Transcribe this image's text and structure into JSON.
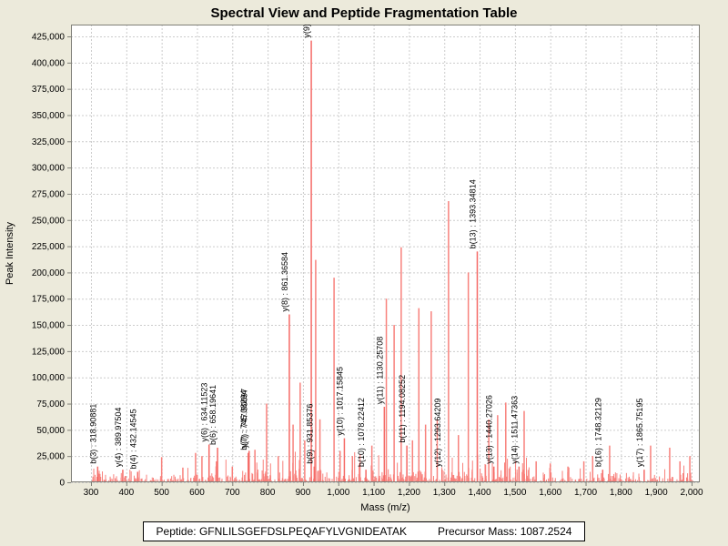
{
  "window": {
    "background": "#ECEADB",
    "plot_background": "#FFFFFF"
  },
  "title": "Spectral View and Peptide Fragmentation Table",
  "footer": {
    "peptide_label": "Peptide:",
    "peptide_sequence": "GFNLILSGEFDSLPEQAFYLVGNIDEATAK",
    "precursor_label": "Precursor Mass:",
    "precursor_mass": "1087.2524"
  },
  "chart_data": {
    "type": "bar",
    "title": "Spectral View and Peptide Fragmentation Table",
    "xlabel": "Mass (m/z)",
    "ylabel": "Peak Intensity",
    "xlim": [
      243,
      2023
    ],
    "ylim": [
      0,
      436000
    ],
    "x_ticks": [
      300,
      400,
      500,
      600,
      700,
      800,
      900,
      1000,
      1100,
      1200,
      1300,
      1400,
      1500,
      1600,
      1700,
      1800,
      1900,
      2000
    ],
    "y_ticks": [
      0,
      25000,
      50000,
      75000,
      100000,
      125000,
      150000,
      175000,
      200000,
      225000,
      250000,
      275000,
      300000,
      325000,
      350000,
      375000,
      400000,
      425000
    ],
    "grid": "dashed",
    "grid_color": "#CCCCCC",
    "axis_color": "#7F7F78",
    "bar_color": "#F8817C",
    "bar_color_strong": "#F56A66",
    "legend": "none",
    "annotated_peaks": [
      {
        "label": "b(3) : 318.90881",
        "mz": 318.90881,
        "intensity": 15000
      },
      {
        "label": "y(4) : 389.97504",
        "mz": 389.97504,
        "intensity": 12000
      },
      {
        "label": "b(4) : 432.14545",
        "mz": 432.14545,
        "intensity": 10000
      },
      {
        "label": "y(6) : 634.11523",
        "mz": 634.11523,
        "intensity": 36000
      },
      {
        "label": "b(6) : 658.19641",
        "mz": 658.19641,
        "intensity": 33000
      },
      {
        "label": "b(7) : 745.08294",
        "mz": 745.08294,
        "intensity": 28000
      },
      {
        "label": "y(7) : 747.50697",
        "mz": 747.50697,
        "intensity": 30000
      },
      {
        "label": "y(8) : 861.36584",
        "mz": 861.36584,
        "intensity": 160000
      },
      {
        "label": "y(9) : ",
        "mz": 923.5,
        "intensity": 421000,
        "value_cutoff": true
      },
      {
        "label": "b(9) : 931.85376",
        "mz": 931.85376,
        "intensity": 15000
      },
      {
        "label": "y(10) : 1017.15845",
        "mz": 1017.15845,
        "intensity": 42000
      },
      {
        "label": "b(10) : 1078.22412",
        "mz": 1078.22412,
        "intensity": 12000
      },
      {
        "label": "y(11) : 1130.25708",
        "mz": 1130.25708,
        "intensity": 72000
      },
      {
        "label": "b(11) : 1194.08252",
        "mz": 1194.08252,
        "intensity": 35000
      },
      {
        "label": "y(12) : 1293.64209",
        "mz": 1293.64209,
        "intensity": 12000
      },
      {
        "label": "b(13) : 1393.34814",
        "mz": 1393.34814,
        "intensity": 220000
      },
      {
        "label": "y(13) : 1440.27026",
        "mz": 1440.27026,
        "intensity": 15000
      },
      {
        "label": "y(14) : 1511.47363",
        "mz": 1511.47363,
        "intensity": 15000
      },
      {
        "label": "b(16) : 1748.32129",
        "mz": 1748.32129,
        "intensity": 12000
      },
      {
        "label": "y(17) : 1865.75195",
        "mz": 1865.75195,
        "intensity": 12000
      }
    ],
    "major_peaks": [
      [
        325,
        8000
      ],
      [
        398,
        6000
      ],
      [
        500,
        24000
      ],
      [
        560,
        14000
      ],
      [
        596,
        28000
      ],
      [
        614,
        25000
      ],
      [
        655,
        20000
      ],
      [
        700,
        15000
      ],
      [
        764,
        31000
      ],
      [
        797,
        75000
      ],
      [
        830,
        25000
      ],
      [
        872,
        55000
      ],
      [
        892,
        95000
      ],
      [
        905,
        40000
      ],
      [
        936,
        212000
      ],
      [
        948,
        60000
      ],
      [
        988,
        195000
      ],
      [
        1005,
        30000
      ],
      [
        1040,
        25000
      ],
      [
        1095,
        35000
      ],
      [
        1136,
        175000
      ],
      [
        1158,
        150000
      ],
      [
        1178,
        224000
      ],
      [
        1210,
        40000
      ],
      [
        1228,
        166000
      ],
      [
        1247,
        55000
      ],
      [
        1263,
        163000
      ],
      [
        1280,
        60000
      ],
      [
        1312,
        268000
      ],
      [
        1340,
        45000
      ],
      [
        1368,
        200000
      ],
      [
        1426,
        60000
      ],
      [
        1451,
        64000
      ],
      [
        1474,
        76000
      ],
      [
        1526,
        68000
      ],
      [
        1560,
        20000
      ],
      [
        1600,
        18000
      ],
      [
        1650,
        15000
      ],
      [
        1695,
        20000
      ],
      [
        1720,
        25000
      ],
      [
        1768,
        35000
      ],
      [
        1884,
        35000
      ],
      [
        1938,
        33000
      ],
      [
        1967,
        20000
      ],
      [
        1995,
        25000
      ]
    ],
    "noise": {
      "seed": 42,
      "bands": [
        {
          "count": 320,
          "mz_min": 305,
          "mz_max": 2005,
          "max_intensity": 16000
        },
        {
          "count": 140,
          "mz_min": 680,
          "mz_max": 1560,
          "max_intensity": 32000
        },
        {
          "count": 420,
          "mz_min": 300,
          "mz_max": 2010,
          "max_intensity": 6000
        }
      ]
    }
  }
}
